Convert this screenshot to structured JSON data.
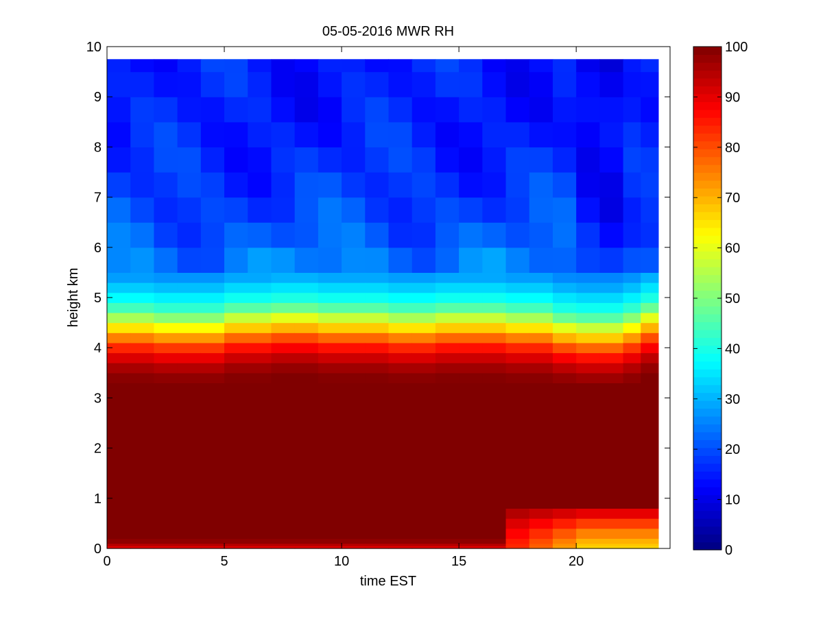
{
  "chart_data": {
    "type": "heatmap",
    "title": "05-05-2016 MWR RH",
    "xlabel": "time EST",
    "ylabel": "height km",
    "xlim": [
      0,
      24
    ],
    "ylim": [
      0,
      10
    ],
    "x_ticks": [
      0,
      5,
      10,
      15,
      20
    ],
    "y_ticks": [
      0,
      1,
      2,
      3,
      4,
      5,
      6,
      7,
      8,
      9,
      10
    ],
    "colorbar": {
      "colormap": "jet",
      "range": [
        0,
        100
      ],
      "ticks": [
        0,
        10,
        20,
        30,
        40,
        50,
        60,
        70,
        80,
        90,
        100
      ]
    },
    "data_extent": {
      "x": [
        0,
        23.5
      ],
      "y": [
        0,
        9.75
      ]
    },
    "time_columns": [
      0.5,
      1.5,
      2.5,
      3.5,
      4.5,
      5.5,
      6.5,
      7.5,
      8.5,
      9.5,
      10.5,
      11.5,
      12.5,
      13.5,
      14.5,
      15.5,
      16.5,
      17.5,
      18.5,
      19.5,
      20.5,
      21.5,
      22.5,
      23.0
    ],
    "height_levels": [
      0,
      0.05,
      0.1,
      0.2,
      0.4,
      0.6,
      0.8,
      1.0,
      1.5,
      2.0,
      2.5,
      3.0,
      3.3,
      3.5,
      3.7,
      3.9,
      4.1,
      4.3,
      4.5,
      4.7,
      4.9,
      5.1,
      5.3,
      5.5,
      6.0,
      6.5,
      7.0,
      7.5,
      8.0,
      8.5,
      9.0,
      9.5,
      9.75
    ],
    "rh_profile_typical": [
      88,
      92,
      97,
      100,
      100,
      100,
      100,
      100,
      100,
      100,
      100,
      100,
      100,
      98,
      94,
      88,
      80,
      70,
      60,
      48,
      40,
      35,
      30,
      26,
      22,
      20,
      18,
      17,
      16,
      15,
      15,
      15,
      15
    ],
    "inversion_top_km": [
      4.4,
      4.4,
      4.35,
      4.35,
      4.35,
      4.45,
      4.45,
      4.5,
      4.5,
      4.45,
      4.45,
      4.45,
      4.4,
      4.4,
      4.45,
      4.45,
      4.45,
      4.4,
      4.4,
      4.3,
      4.25,
      4.25,
      4.35,
      4.5
    ],
    "surface_dry_layer": {
      "time_range": [
        17.5,
        23.5
      ],
      "height_top_km": 0.85,
      "min_rh": 62
    }
  }
}
